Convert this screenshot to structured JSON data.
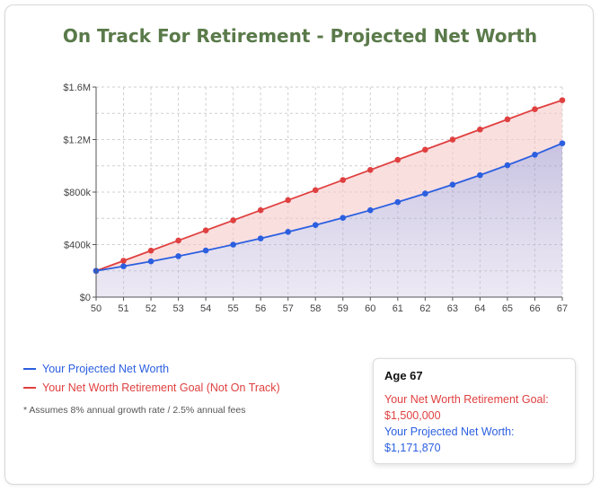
{
  "title": "On Track For Retirement - Projected Net Worth",
  "colors": {
    "projected": "#2b5fe0",
    "goal": "#e04040",
    "title": "#5a7a4a"
  },
  "legend": {
    "projected": "Your Projected Net Worth",
    "goal": "Your Net Worth Retirement Goal (Not On Track)"
  },
  "note": "* Assumes 8% annual growth rate / 2.5% annual fees",
  "tooltip": {
    "header": "Age 67",
    "goal_label": "Your Net Worth Retirement Goal:",
    "goal_value": "$1,500,000",
    "projected_label": "Your Projected Net Worth:",
    "projected_value": "$1,171,870"
  },
  "chart_data": {
    "type": "area",
    "x": [
      50,
      51,
      52,
      53,
      54,
      55,
      56,
      57,
      58,
      59,
      60,
      61,
      62,
      63,
      64,
      65,
      66,
      67
    ],
    "series": [
      {
        "name": "Your Projected Net Worth",
        "color": "#2b5fe0",
        "values": [
          200000,
          235000,
          272000,
          312000,
          355000,
          400000,
          447000,
          497000,
          549000,
          604000,
          662000,
          724000,
          789000,
          857000,
          929000,
          1005000,
          1085000,
          1171870
        ]
      },
      {
        "name": "Your Net Worth Retirement Goal (Not On Track)",
        "color": "#e04040",
        "values": [
          200000,
          277000,
          354000,
          431000,
          508000,
          585000,
          662000,
          739000,
          815000,
          892000,
          969000,
          1046000,
          1123000,
          1200000,
          1277000,
          1354000,
          1431000,
          1500000
        ]
      }
    ],
    "yticks": [
      0,
      400000,
      800000,
      1200000,
      1600000
    ],
    "ytick_labels": [
      "$0",
      "$400k",
      "$800k",
      "$1.2M",
      "$1.6M"
    ],
    "xtick_labels": [
      "50",
      "51",
      "52",
      "53",
      "54",
      "55",
      "56",
      "57",
      "58",
      "59",
      "60",
      "61",
      "62",
      "63",
      "64",
      "65",
      "66",
      "67"
    ],
    "ylim": [
      0,
      1600000
    ],
    "xlim": [
      50,
      67
    ],
    "grid": true
  }
}
